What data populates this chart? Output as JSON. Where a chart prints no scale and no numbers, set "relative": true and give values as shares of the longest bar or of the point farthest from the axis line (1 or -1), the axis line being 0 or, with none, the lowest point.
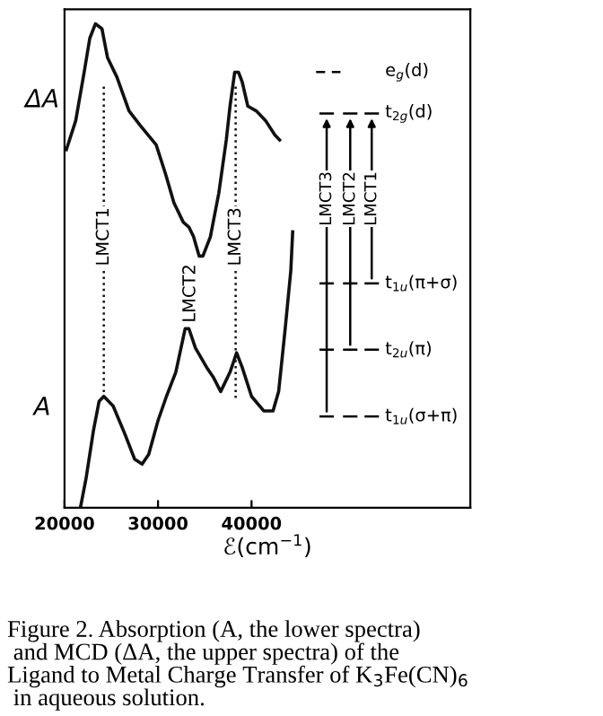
{
  "chart_data": {
    "type": "line",
    "relative": true,
    "xlabel": "ℰ(cm$^{−1}$)",
    "xlim": [
      20000,
      63400
    ],
    "xticks": [
      20000,
      30000,
      40000
    ],
    "tick_labels": "x",
    "grid": false,
    "marker": "none",
    "line_style": "solid",
    "series": [
      {
        "color": "#111111",
        "x": [
          20200,
          21200,
          22100,
          22700,
          23300,
          24000,
          24600,
          25600,
          26900,
          28100,
          29800,
          30800,
          31700,
          32700,
          33300,
          33800,
          34400,
          34800,
          35600,
          36500,
          37300,
          37700,
          38200,
          38600,
          39000,
          39600,
          40500,
          41500,
          42500,
          43000
        ],
        "values": [
          0.74,
          0.8,
          0.9,
          0.97,
          1.0,
          0.99,
          0.93,
          0.89,
          0.82,
          0.79,
          0.75,
          0.69,
          0.63,
          0.59,
          0.58,
          0.56,
          0.52,
          0.52,
          0.56,
          0.65,
          0.76,
          0.83,
          0.9,
          0.9,
          0.88,
          0.83,
          0.82,
          0.8,
          0.77,
          0.76
        ]
      },
      {
        "color": "#111111",
        "x": [
          21700,
          22300,
          23100,
          23700,
          24200,
          25200,
          26500,
          27500,
          28300,
          29000,
          30000,
          30900,
          31900,
          32900,
          33300,
          34000,
          35200,
          35900,
          36700,
          37700,
          38400,
          39000,
          40000,
          41300,
          42300,
          42900,
          43600,
          44200,
          44400
        ],
        "values": [
          0.0,
          0.06,
          0.16,
          0.22,
          0.23,
          0.21,
          0.15,
          0.1,
          0.09,
          0.11,
          0.18,
          0.23,
          0.28,
          0.37,
          0.37,
          0.33,
          0.29,
          0.27,
          0.24,
          0.28,
          0.32,
          0.29,
          0.23,
          0.2,
          0.2,
          0.24,
          0.37,
          0.49,
          0.57
        ]
      }
    ],
    "ref_lines": [
      {
        "axis": "x",
        "value": 24200,
        "label": "LMCT1",
        "line_style": "dotted",
        "color": "#111111"
      },
      {
        "axis": "x",
        "value": 38300,
        "label": "LMCT3",
        "line_style": "dotted",
        "color": "#111111"
      }
    ],
    "annotations": [
      "ΔA",
      "A",
      "LMCT2",
      "e$_{g}$(d)",
      "t$_{2g}$(d)",
      "t$_{1u}$(π+σ)",
      "t$_{2u}$(π)",
      "t$_{1u}$(σ+π)",
      "LMCT3",
      "LMCT2",
      "LMCT1",
      "Figure 2. Absorption (A, the lower spectra)\n and MCD (ΔA, the upper spectra) of the\nLigand to Metal Charge Transfer of K$_{3}$Fe(CN)$_{6}$\n in aqueous solution."
    ]
  }
}
